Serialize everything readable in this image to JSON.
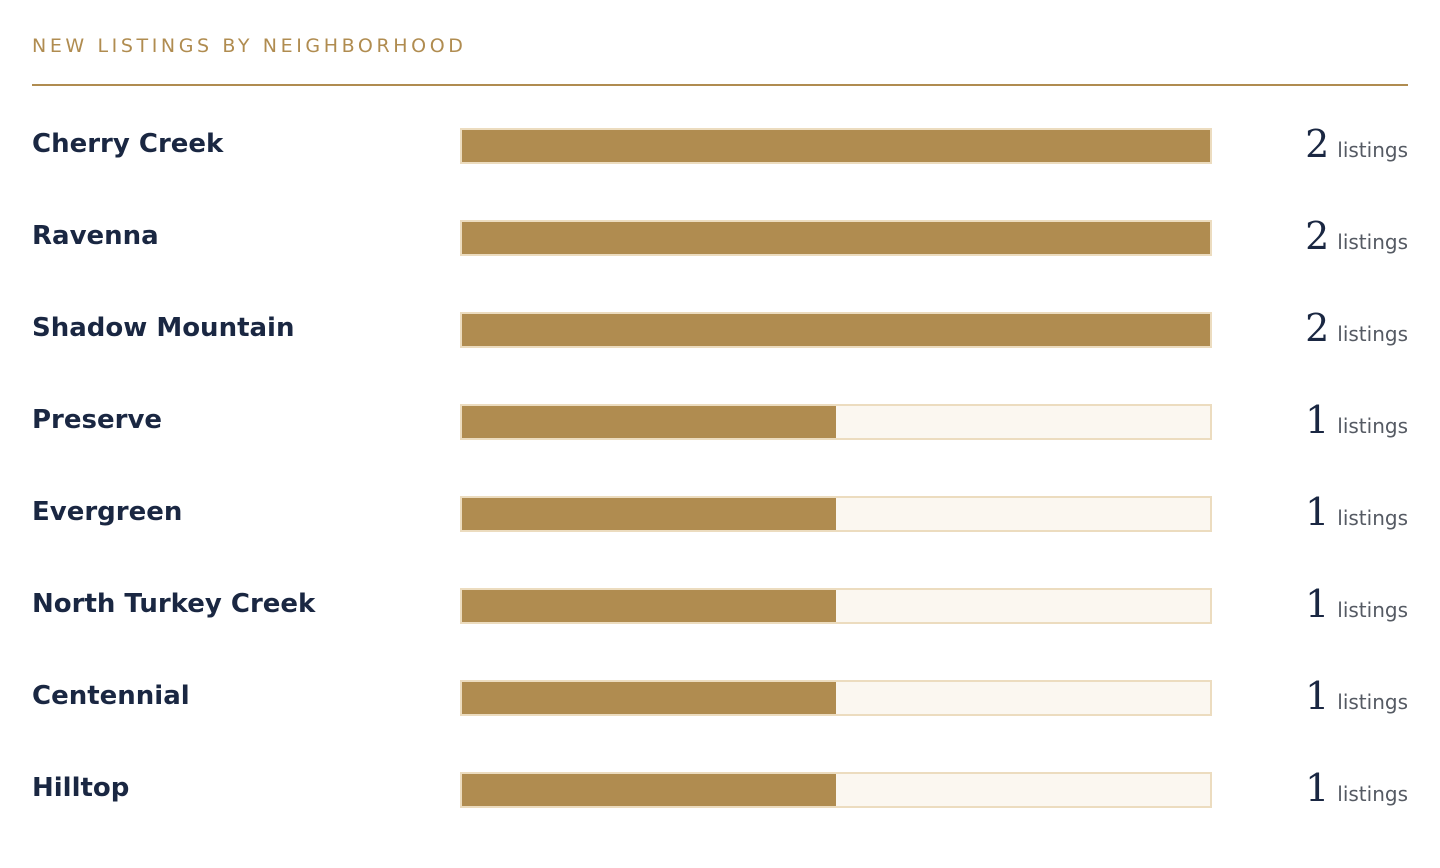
{
  "header": {
    "title": "NEW LISTINGS BY NEIGHBORHOOD"
  },
  "colors": {
    "accent": "#b08c50",
    "track": "#fbf7f0",
    "track_border": "#ecdcbf",
    "text": "#1a2742"
  },
  "chart_data": {
    "type": "bar",
    "orientation": "horizontal",
    "title": "NEW LISTINGS BY NEIGHBORHOOD",
    "xlim": [
      0,
      2
    ],
    "categories": [
      "Cherry Creek",
      "Ravenna",
      "Shadow Mountain",
      "Preserve",
      "Evergreen",
      "North Turkey Creek",
      "Centennial",
      "Hilltop"
    ],
    "values": [
      2,
      2,
      2,
      1,
      1,
      1,
      1,
      1
    ],
    "unit_label": "listings"
  }
}
